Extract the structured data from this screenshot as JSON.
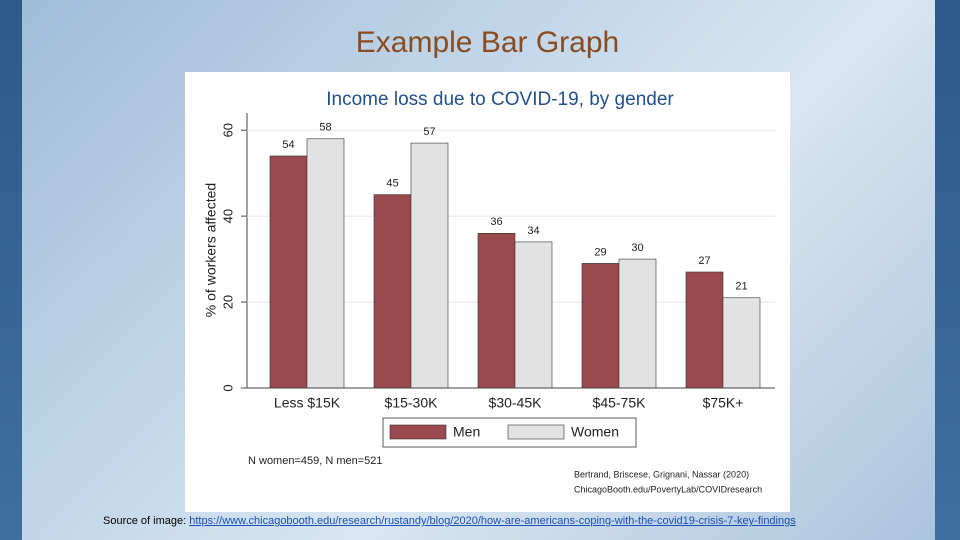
{
  "slide": {
    "title": "Example Bar Graph",
    "source_prefix": "Source of image:",
    "source_url": "https://www.chicagobooth.edu/research/rustandy/blog/2020/how-are-americans-coping-with-the-covid19-crisis-7-key-findings"
  },
  "chart_data": {
    "type": "bar",
    "title": "Income loss due to COVID-19, by gender",
    "y_label": "% of workers affected",
    "categories": [
      "Less $15K",
      "$15-30K",
      "$30-45K",
      "$45-75K",
      "$75K+"
    ],
    "series": [
      {
        "name": "Men",
        "color": "#9a4a4f",
        "values": [
          54,
          45,
          36,
          29,
          27
        ]
      },
      {
        "name": "Women",
        "color": "#e2e2e2",
        "values": [
          58,
          57,
          34,
          30,
          21
        ]
      }
    ],
    "ylim": [
      0,
      64
    ],
    "yticks": [
      0,
      20,
      40,
      60
    ],
    "grid": true,
    "legend": "bottom",
    "note": "N women=459, N men=521",
    "credit": [
      "Bertrand, Briscese, Grignani, Nassar (2020)",
      "ChicagoBooth.edu/PovertyLab/COVIDresearch"
    ]
  }
}
